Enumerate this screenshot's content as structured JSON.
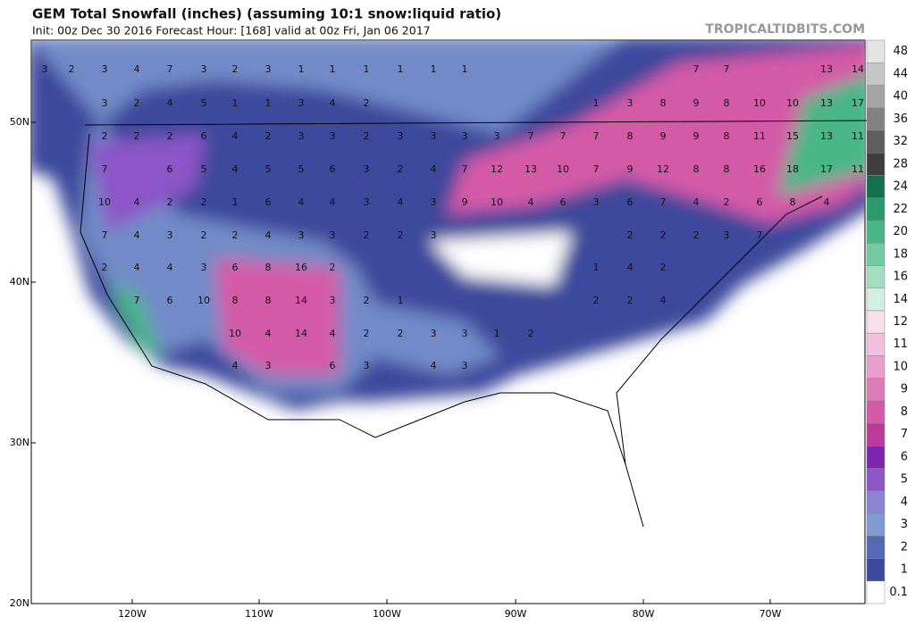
{
  "header": {
    "title": "GEM Total Snowfall (inches) (assuming 10:1 snow:liquid ratio)",
    "subtitle": "Init: 00z Dec 30 2016   Forecast Hour: [168]   valid at 00z Fri, Jan 06 2017",
    "brand": "TROPICALTIDBITS.COM"
  },
  "map": {
    "lat_labels": [
      "50N",
      "40N",
      "30N",
      "20N"
    ],
    "lon_labels": [
      "120W",
      "110W",
      "100W",
      "90W",
      "80W",
      "70W"
    ],
    "snow_labels": [
      3,
      2,
      3,
      4,
      7,
      3,
      2,
      3,
      1,
      1,
      1,
      1,
      1,
      1,
      7,
      7,
      13,
      14,
      3,
      2,
      4,
      5,
      1,
      1,
      3,
      4,
      2,
      1,
      3,
      8,
      9,
      8,
      10,
      10,
      13,
      17,
      2,
      2,
      2,
      6,
      4,
      2,
      3,
      3,
      2,
      3,
      3,
      3,
      3,
      7,
      7,
      7,
      8,
      9,
      9,
      8,
      11,
      15,
      13,
      11,
      7,
      6,
      5,
      4,
      5,
      5,
      6,
      3,
      2,
      4,
      7,
      12,
      13,
      10,
      7,
      9,
      12,
      8,
      8,
      16,
      18,
      17,
      11,
      10,
      4,
      2,
      2,
      1,
      6,
      4,
      4,
      3,
      4,
      3,
      9,
      10,
      4,
      6,
      3,
      6,
      7,
      4,
      2,
      6,
      8,
      4,
      7,
      4,
      3,
      2,
      2,
      4,
      3,
      3,
      2,
      2,
      3,
      2,
      2,
      2,
      3,
      7,
      2,
      4,
      4,
      3,
      6,
      8,
      16,
      2,
      1,
      4,
      2,
      7,
      6,
      10,
      8,
      8,
      14,
      3,
      2,
      1,
      2,
      2,
      4,
      10,
      4,
      14,
      4,
      2,
      2,
      3,
      3,
      1,
      2,
      4,
      3,
      6,
      3,
      4,
      3
    ]
  },
  "colorbar": {
    "labels": [
      "0.1",
      "1",
      "2",
      "3",
      "4",
      "5",
      "6",
      "7",
      "8",
      "9",
      "10",
      "11",
      "12",
      "14",
      "16",
      "18",
      "20",
      "22",
      "24",
      "28",
      "32",
      "36",
      "40",
      "44",
      "48"
    ],
    "colors": [
      "#ffffff",
      "#3d4a9c",
      "#5569b4",
      "#7f9bd3",
      "#8a84d2",
      "#8c55c8",
      "#7d24b0",
      "#bd3a9a",
      "#d45aa8",
      "#de7cb9",
      "#e89fcc",
      "#f1c0de",
      "#f8dfee",
      "#d4efe2",
      "#a5ddc2",
      "#74cba3",
      "#48b688",
      "#2a9a6c",
      "#13714d",
      "#3e3e3e",
      "#5e5e5e",
      "#828282",
      "#a5a5a5",
      "#c6c6c6",
      "#e4e4e4"
    ]
  }
}
